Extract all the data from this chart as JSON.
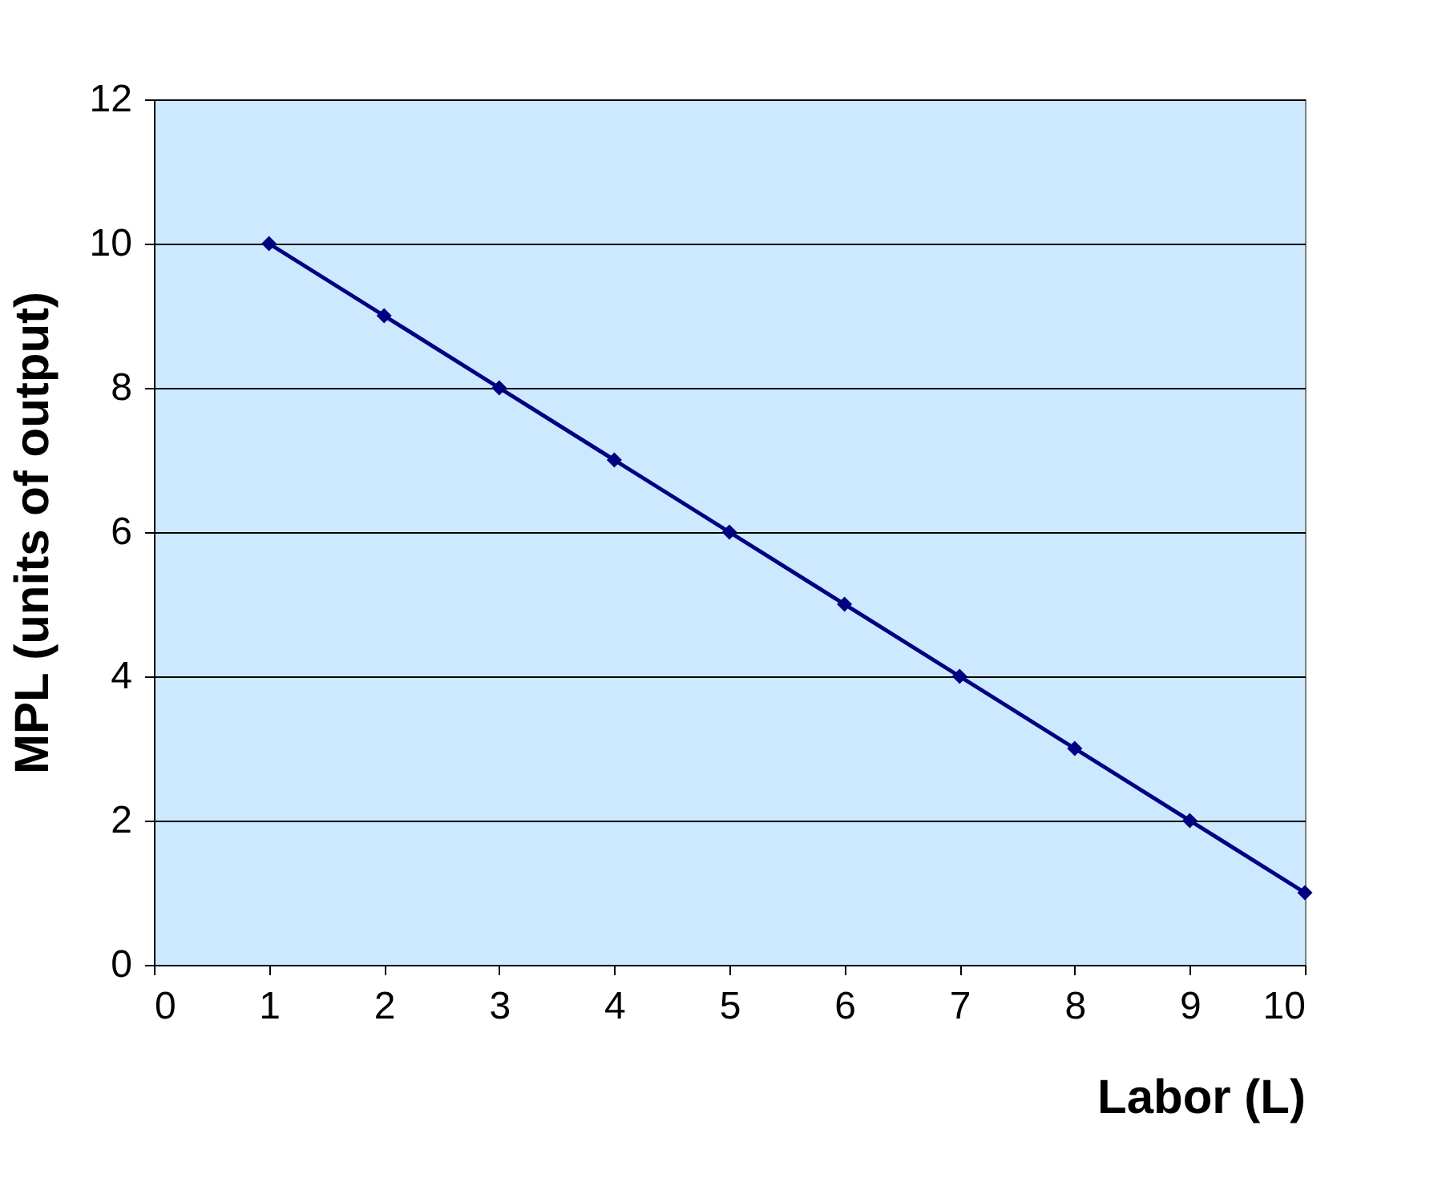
{
  "chart_data": {
    "type": "line",
    "xlabel": "Labor (L)",
    "ylabel": "MPL (units of output)",
    "x": [
      1,
      2,
      3,
      4,
      5,
      6,
      7,
      8,
      9,
      10
    ],
    "series": [
      {
        "color": "#000080",
        "values": [
          10,
          9,
          8,
          7,
          6,
          5,
          4,
          3,
          2,
          1
        ]
      }
    ],
    "xlim": [
      0,
      10
    ],
    "xticks": [
      0,
      1,
      2,
      3,
      4,
      5,
      6,
      7,
      8,
      9,
      10
    ],
    "ylim": [
      0,
      12
    ],
    "yticks": [
      0,
      2,
      4,
      6,
      8,
      10,
      12
    ],
    "grid": "y",
    "marker": "diamond",
    "line_style": "solid",
    "legend": false
  }
}
